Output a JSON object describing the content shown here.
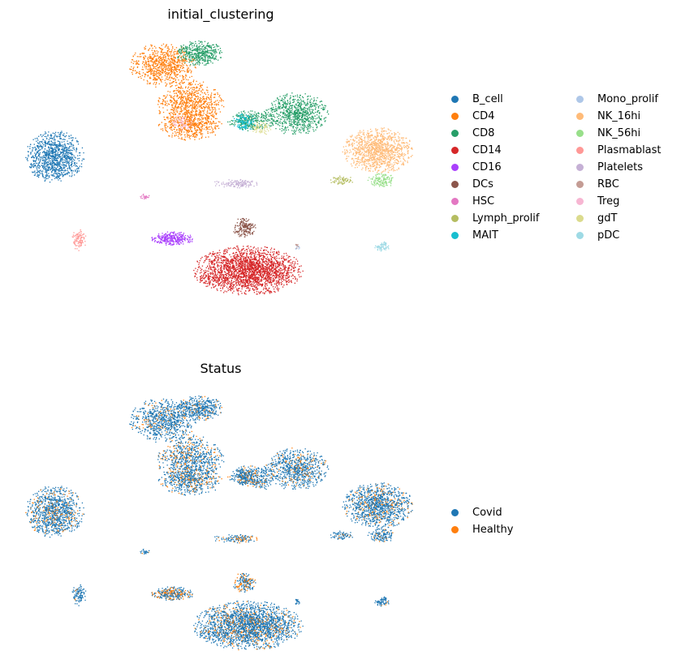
{
  "chart_data": [
    {
      "type": "scatter",
      "title": "initial_clustering",
      "xlabel": "",
      "ylabel": "",
      "axes_visible": false,
      "legend_placement": "right, two columns",
      "categories": [
        {
          "name": "B_cell",
          "color": "#1f77b4"
        },
        {
          "name": "CD4",
          "color": "#ff7f0e"
        },
        {
          "name": "CD8",
          "color": "#279e68"
        },
        {
          "name": "CD14",
          "color": "#d62728"
        },
        {
          "name": "CD16",
          "color": "#aa40fc"
        },
        {
          "name": "DCs",
          "color": "#8c564b"
        },
        {
          "name": "HSC",
          "color": "#e377c2"
        },
        {
          "name": "Lymph_prolif",
          "color": "#b5bd61"
        },
        {
          "name": "MAIT",
          "color": "#17becf"
        },
        {
          "name": "Mono_prolif",
          "color": "#aec7e8"
        },
        {
          "name": "NK_16hi",
          "color": "#ffbb78"
        },
        {
          "name": "NK_56hi",
          "color": "#98df8a"
        },
        {
          "name": "Plasmablast",
          "color": "#ff9896"
        },
        {
          "name": "Platelets",
          "color": "#c5b0d5"
        },
        {
          "name": "RBC",
          "color": "#c49c94"
        },
        {
          "name": "Treg",
          "color": "#f7b6d2"
        },
        {
          "name": "gdT",
          "color": "#dbdb8d"
        },
        {
          "name": "pDC",
          "color": "#9edae5"
        }
      ]
    },
    {
      "type": "scatter",
      "title": "Status",
      "xlabel": "",
      "ylabel": "",
      "axes_visible": false,
      "legend_placement": "right",
      "categories": [
        {
          "name": "Covid",
          "color": "#1f77b4"
        },
        {
          "name": "Healthy",
          "color": "#ff7f0e"
        }
      ]
    }
  ]
}
